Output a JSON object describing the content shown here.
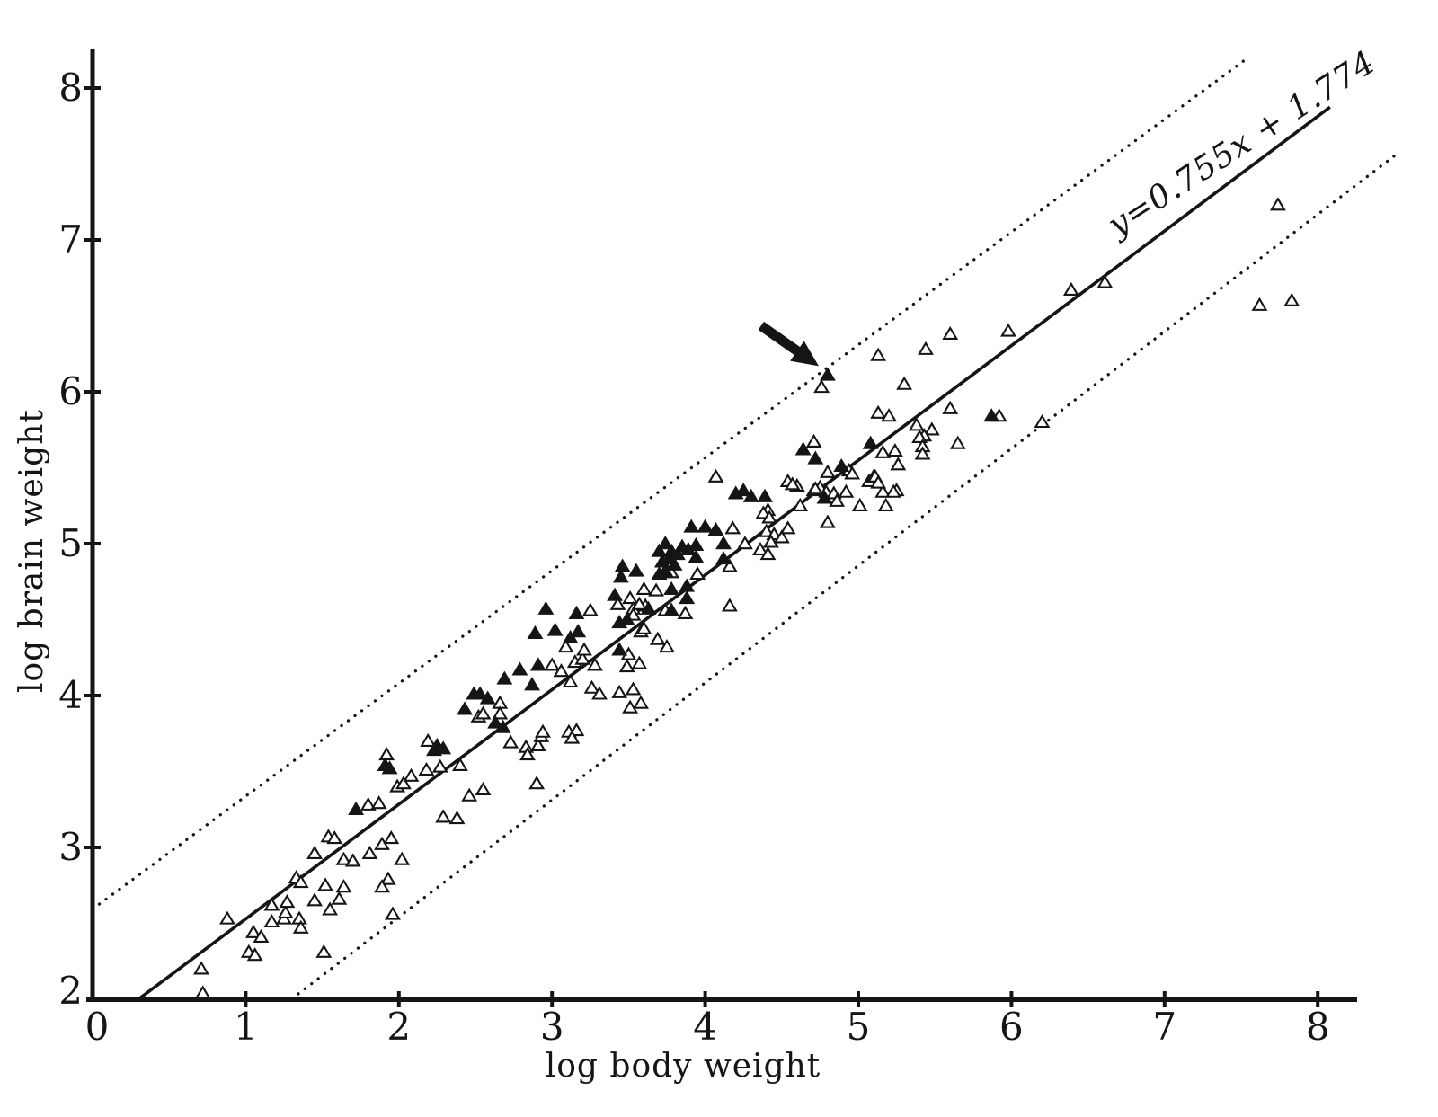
{
  "chart_data": {
    "type": "scatter",
    "title": "",
    "xlabel": "log body weight",
    "ylabel": "log brain weight",
    "xlim": [
      0,
      8.3
    ],
    "ylim": [
      2,
      8.25
    ],
    "grid": false,
    "x_ticks": [
      0,
      1,
      2,
      3,
      4,
      5,
      6,
      7,
      8
    ],
    "y_ticks": [
      2,
      3,
      4,
      5,
      6,
      7,
      8
    ],
    "regression": {
      "label": "y=0.755x + 1.774",
      "slope": 0.755,
      "intercept": 1.774,
      "x_range": [
        0.3,
        8.08
      ]
    },
    "bands": {
      "style": "dotted",
      "upper": {
        "slope": 0.743,
        "intercept": 2.594,
        "x_range": [
          0.0,
          7.52
        ]
      },
      "lower": {
        "slope": 0.771,
        "intercept": 1.0,
        "x_range": [
          1.3,
          8.53
        ]
      }
    },
    "annotation": {
      "type": "arrow",
      "points_to": [
        4.8,
        6.11
      ],
      "description": "bold arrow highlighting the filled triangle lying on the upper dotted band"
    },
    "series": [
      {
        "name": "open-triangles",
        "marker": "triangle-open",
        "points": [
          [
            0.72,
            2.04
          ],
          [
            0.71,
            2.2
          ],
          [
            0.88,
            2.53
          ],
          [
            1.02,
            2.31
          ],
          [
            1.06,
            2.29
          ],
          [
            1.05,
            2.44
          ],
          [
            1.1,
            2.41
          ],
          [
            1.17,
            2.51
          ],
          [
            1.25,
            2.53
          ],
          [
            1.26,
            2.57
          ],
          [
            1.35,
            2.53
          ],
          [
            1.36,
            2.47
          ],
          [
            1.17,
            2.62
          ],
          [
            1.27,
            2.64
          ],
          [
            1.45,
            2.65
          ],
          [
            1.55,
            2.59
          ],
          [
            1.61,
            2.66
          ],
          [
            1.51,
            2.31
          ],
          [
            1.33,
            2.8
          ],
          [
            1.36,
            2.77
          ],
          [
            1.45,
            2.96
          ],
          [
            1.52,
            2.75
          ],
          [
            1.64,
            2.74
          ],
          [
            1.54,
            3.07
          ],
          [
            1.58,
            3.06
          ],
          [
            1.64,
            2.92
          ],
          [
            1.7,
            2.91
          ],
          [
            1.81,
            2.96
          ],
          [
            1.89,
            3.02
          ],
          [
            1.95,
            3.06
          ],
          [
            2.02,
            2.92
          ],
          [
            1.96,
            2.56
          ],
          [
            1.8,
            3.28
          ],
          [
            1.87,
            3.29
          ],
          [
            1.93,
            2.79
          ],
          [
            1.89,
            2.74
          ],
          [
            1.92,
            3.61
          ],
          [
            1.99,
            3.4
          ],
          [
            2.03,
            3.42
          ],
          [
            2.08,
            3.47
          ],
          [
            2.18,
            3.51
          ],
          [
            2.27,
            3.53
          ],
          [
            2.4,
            3.54
          ],
          [
            2.46,
            3.34
          ],
          [
            2.55,
            3.38
          ],
          [
            2.29,
            3.2
          ],
          [
            2.38,
            3.19
          ],
          [
            2.9,
            3.42
          ],
          [
            2.19,
            3.7
          ],
          [
            2.52,
            3.86
          ],
          [
            2.55,
            3.88
          ],
          [
            2.66,
            3.95
          ],
          [
            2.66,
            3.88
          ],
          [
            2.73,
            3.69
          ],
          [
            2.83,
            3.66
          ],
          [
            2.84,
            3.61
          ],
          [
            2.91,
            3.67
          ],
          [
            2.93,
            3.73
          ],
          [
            2.94,
            3.76
          ],
          [
            3.0,
            4.2
          ],
          [
            3.06,
            4.16
          ],
          [
            3.25,
            4.56
          ],
          [
            3.15,
            4.22
          ],
          [
            3.2,
            4.24
          ],
          [
            3.28,
            4.2
          ],
          [
            3.11,
            3.76
          ],
          [
            3.16,
            3.77
          ],
          [
            3.13,
            3.72
          ],
          [
            3.51,
            4.64
          ],
          [
            3.43,
            4.6
          ],
          [
            3.53,
            4.57
          ],
          [
            3.61,
            4.59
          ],
          [
            3.74,
            4.56
          ],
          [
            3.87,
            4.54
          ],
          [
            4.16,
            4.59
          ],
          [
            3.6,
            4.7
          ],
          [
            3.68,
            4.69
          ],
          [
            3.57,
            4.6
          ],
          [
            3.53,
            4.53
          ],
          [
            3.58,
            4.42
          ],
          [
            3.6,
            4.44
          ],
          [
            3.69,
            4.37
          ],
          [
            3.75,
            4.32
          ],
          [
            3.5,
            4.27
          ],
          [
            3.57,
            4.21
          ],
          [
            3.49,
            4.19
          ],
          [
            3.44,
            4.02
          ],
          [
            3.53,
            4.04
          ],
          [
            3.51,
            3.92
          ],
          [
            3.58,
            3.95
          ],
          [
            3.09,
            4.32
          ],
          [
            3.21,
            4.3
          ],
          [
            3.12,
            4.09
          ],
          [
            3.26,
            4.05
          ],
          [
            3.31,
            4.01
          ],
          [
            3.78,
            4.81
          ],
          [
            3.95,
            4.8
          ],
          [
            4.18,
            5.1
          ],
          [
            4.26,
            5.0
          ],
          [
            4.36,
            4.96
          ],
          [
            4.41,
            4.93
          ],
          [
            4.16,
            4.85
          ],
          [
            4.41,
            5.22
          ],
          [
            4.07,
            5.44
          ],
          [
            4.54,
            5.41
          ],
          [
            4.6,
            5.38
          ],
          [
            4.71,
            5.35
          ],
          [
            4.75,
            5.37
          ],
          [
            4.79,
            5.34
          ],
          [
            4.8,
            5.47
          ],
          [
            4.92,
            5.34
          ],
          [
            4.94,
            5.48
          ],
          [
            5.07,
            5.41
          ],
          [
            5.1,
            5.44
          ],
          [
            5.16,
            5.34
          ],
          [
            5.25,
            5.35
          ],
          [
            5.01,
            5.25
          ],
          [
            5.18,
            5.25
          ],
          [
            4.96,
            5.46
          ],
          [
            5.11,
            5.44
          ],
          [
            5.13,
            5.4
          ],
          [
            5.23,
            5.34
          ],
          [
            4.57,
            5.39
          ],
          [
            4.71,
            5.67
          ],
          [
            5.16,
            5.6
          ],
          [
            5.24,
            5.61
          ],
          [
            5.26,
            5.52
          ],
          [
            4.38,
            5.2
          ],
          [
            4.42,
            5.17
          ],
          [
            4.4,
            5.08
          ],
          [
            4.45,
            5.06
          ],
          [
            4.43,
            5.01
          ],
          [
            4.5,
            5.04
          ],
          [
            4.54,
            5.1
          ],
          [
            4.72,
            5.36
          ],
          [
            4.84,
            5.33
          ],
          [
            4.86,
            5.28
          ],
          [
            4.62,
            5.25
          ],
          [
            4.8,
            5.14
          ],
          [
            4.76,
            6.03
          ],
          [
            5.13,
            6.24
          ],
          [
            5.3,
            6.05
          ],
          [
            5.44,
            6.28
          ],
          [
            5.6,
            6.38
          ],
          [
            5.98,
            6.4
          ],
          [
            6.39,
            6.67
          ],
          [
            6.61,
            6.72
          ],
          [
            5.13,
            5.86
          ],
          [
            5.2,
            5.84
          ],
          [
            5.6,
            5.89
          ],
          [
            5.92,
            5.84
          ],
          [
            6.2,
            5.8
          ],
          [
            5.38,
            5.78
          ],
          [
            5.48,
            5.75
          ],
          [
            5.43,
            5.71
          ],
          [
            5.4,
            5.7
          ],
          [
            5.42,
            5.64
          ],
          [
            5.42,
            5.59
          ],
          [
            5.65,
            5.66
          ],
          [
            7.74,
            7.23
          ],
          [
            7.62,
            6.57
          ],
          [
            7.83,
            6.6
          ]
        ]
      },
      {
        "name": "filled-triangles",
        "marker": "triangle-filled",
        "points": [
          [
            1.72,
            3.25
          ],
          [
            1.91,
            3.54
          ],
          [
            1.94,
            3.52
          ],
          [
            2.25,
            3.67
          ],
          [
            2.23,
            3.64
          ],
          [
            2.29,
            3.65
          ],
          [
            2.43,
            3.91
          ],
          [
            2.49,
            4.01
          ],
          [
            2.53,
            4.01
          ],
          [
            2.58,
            3.98
          ],
          [
            2.63,
            3.82
          ],
          [
            2.68,
            3.79
          ],
          [
            2.69,
            4.11
          ],
          [
            2.79,
            4.17
          ],
          [
            2.87,
            4.07
          ],
          [
            2.91,
            4.2
          ],
          [
            2.96,
            4.57
          ],
          [
            3.16,
            4.54
          ],
          [
            2.89,
            4.41
          ],
          [
            3.02,
            4.43
          ],
          [
            3.12,
            4.38
          ],
          [
            3.17,
            4.42
          ],
          [
            3.44,
            4.48
          ],
          [
            3.49,
            4.5
          ],
          [
            3.46,
            4.85
          ],
          [
            3.55,
            4.82
          ],
          [
            3.45,
            4.78
          ],
          [
            3.41,
            4.66
          ],
          [
            3.78,
            4.7
          ],
          [
            3.88,
            4.72
          ],
          [
            3.88,
            4.64
          ],
          [
            3.44,
            4.3
          ],
          [
            3.63,
            4.57
          ],
          [
            3.78,
            4.56
          ],
          [
            3.7,
            4.8
          ],
          [
            3.74,
            4.82
          ],
          [
            3.72,
            4.88
          ],
          [
            3.76,
            4.9
          ],
          [
            3.7,
            4.95
          ],
          [
            3.78,
            4.95
          ],
          [
            3.74,
            5.0
          ],
          [
            3.8,
            4.86
          ],
          [
            3.82,
            4.93
          ],
          [
            3.85,
            4.98
          ],
          [
            3.89,
            4.96
          ],
          [
            3.94,
            4.91
          ],
          [
            3.94,
            4.99
          ],
          [
            3.91,
            5.11
          ],
          [
            4.0,
            5.11
          ],
          [
            4.07,
            5.09
          ],
          [
            4.12,
            4.9
          ],
          [
            4.12,
            5.0
          ],
          [
            4.2,
            5.33
          ],
          [
            4.25,
            5.35
          ],
          [
            4.3,
            5.31
          ],
          [
            4.39,
            5.31
          ],
          [
            4.78,
            5.3
          ],
          [
            4.64,
            5.62
          ],
          [
            4.72,
            5.56
          ],
          [
            4.89,
            5.51
          ],
          [
            5.08,
            5.66
          ],
          [
            5.87,
            5.84
          ],
          [
            4.8,
            6.11
          ]
        ]
      }
    ]
  },
  "colors": {
    "ink": "#151515",
    "background": "#ffffff"
  }
}
